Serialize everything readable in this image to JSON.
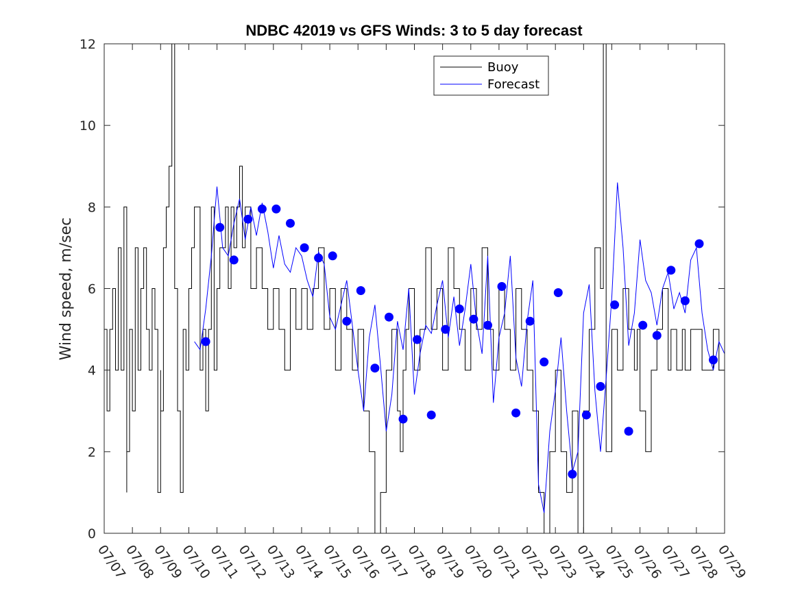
{
  "chart_data": {
    "type": "line",
    "title": "NDBC 42019 vs GFS Winds: 3 to 5 day forecast",
    "xlabel": "",
    "ylabel": "Wind speed, m/sec",
    "xlim": [
      0,
      22
    ],
    "ylim": [
      0,
      12
    ],
    "y_ticks": [
      "0",
      "2",
      "4",
      "6",
      "8",
      "10",
      "12"
    ],
    "x_ticks": [
      "07/07",
      "07/08",
      "07/09",
      "07/10",
      "07/11",
      "07/12",
      "07/13",
      "07/14",
      "07/15",
      "07/16",
      "07/17",
      "07/18",
      "07/19",
      "07/20",
      "07/21",
      "07/22",
      "07/23",
      "07/24",
      "07/25",
      "07/26",
      "07/27",
      "07/28",
      "07/29"
    ],
    "x_unit_note_days_from": "07/07",
    "grid": false,
    "legend_position": "top-center",
    "legend": [
      "Buoy",
      "Forecast"
    ],
    "colors": {
      "buoy": "#000000",
      "forecast": "#0000ff",
      "analysis_points": "#0000ff"
    },
    "buoy": {
      "name": "Buoy",
      "x": [
        0.0,
        0.1,
        0.2,
        0.3,
        0.4,
        0.5,
        0.6,
        0.7,
        0.8,
        0.8,
        0.9,
        1.0,
        1.1,
        1.2,
        1.3,
        1.4,
        1.5,
        1.6,
        1.7,
        1.8,
        1.9,
        2.0,
        2.0,
        2.1,
        2.2,
        2.3,
        2.4,
        2.5,
        2.6,
        2.7,
        2.8,
        2.9,
        3.0,
        3.1,
        3.2,
        3.4,
        3.5,
        3.6,
        3.7,
        3.8,
        3.9,
        4.0,
        4.1,
        4.2,
        4.3,
        4.4,
        4.5,
        4.6,
        4.7,
        4.8,
        4.9,
        5.0,
        5.2,
        5.4,
        5.6,
        5.8,
        6.0,
        6.2,
        6.4,
        6.6,
        6.8,
        7.0,
        7.2,
        7.4,
        7.6,
        7.8,
        8.0,
        8.2,
        8.4,
        8.6,
        8.8,
        9.0,
        9.2,
        9.4,
        9.6,
        9.8,
        10.0,
        10.2,
        10.4,
        10.5,
        10.6,
        10.7,
        10.8,
        11.0,
        11.2,
        11.4,
        11.6,
        11.8,
        12.0,
        12.2,
        12.4,
        12.6,
        12.8,
        13.0,
        13.2,
        13.4,
        13.6,
        13.8,
        14.0,
        14.2,
        14.4,
        14.6,
        14.8,
        15.0,
        15.2,
        15.4,
        15.6,
        15.8,
        16.0,
        16.2,
        16.4,
        16.6,
        16.8,
        17.0,
        17.2,
        17.4,
        17.6,
        17.7,
        17.8,
        18.0,
        18.2,
        18.4,
        18.6,
        18.8,
        18.9,
        19.0,
        19.2,
        19.4,
        19.6,
        19.8,
        20.0,
        20.1,
        20.3,
        20.5,
        20.6,
        20.8,
        21.0,
        21.2,
        21.4,
        21.6,
        21.8,
        22.0
      ],
      "values": [
        5,
        3,
        5,
        6,
        4,
        7,
        4,
        8,
        1,
        2,
        5,
        3,
        7,
        4,
        6,
        7,
        5,
        4,
        6,
        5,
        1,
        4,
        3,
        7,
        8,
        9,
        12,
        6,
        3,
        1,
        5,
        4,
        6,
        7,
        8,
        4,
        5,
        3,
        5,
        8,
        4,
        6,
        7,
        7,
        8,
        6,
        8,
        7,
        8,
        9,
        7,
        8,
        6,
        7,
        6,
        5,
        6,
        5,
        4,
        6,
        5,
        6,
        5,
        6,
        7,
        5,
        6,
        4,
        6,
        5,
        4,
        5,
        3,
        2,
        0,
        1,
        4,
        5,
        3,
        2,
        4,
        5,
        6,
        4,
        5,
        7,
        5,
        6,
        4,
        7,
        6,
        5,
        4,
        6,
        5,
        7,
        5,
        4,
        6,
        5,
        4,
        6,
        5,
        4,
        3,
        1,
        0,
        2,
        4,
        2,
        1,
        3,
        0,
        3,
        5,
        7,
        6,
        12,
        2,
        5,
        4,
        6,
        5,
        4,
        5,
        3,
        2,
        4,
        5,
        6,
        4,
        5,
        4,
        5,
        4,
        5,
        5,
        4,
        4,
        5,
        4,
        4
      ]
    },
    "forecast": {
      "name": "Forecast",
      "x": [
        3.2,
        3.4,
        3.6,
        3.8,
        4.0,
        4.2,
        4.4,
        4.6,
        4.8,
        5.0,
        5.2,
        5.4,
        5.6,
        5.8,
        6.0,
        6.2,
        6.4,
        6.6,
        6.8,
        7.0,
        7.2,
        7.4,
        7.6,
        7.8,
        8.0,
        8.2,
        8.4,
        8.6,
        8.8,
        9.0,
        9.2,
        9.4,
        9.6,
        9.8,
        10.0,
        10.2,
        10.4,
        10.6,
        10.8,
        11.0,
        11.2,
        11.4,
        11.6,
        11.8,
        12.0,
        12.2,
        12.4,
        12.6,
        12.8,
        13.0,
        13.2,
        13.4,
        13.6,
        13.8,
        14.0,
        14.2,
        14.4,
        14.6,
        14.8,
        15.0,
        15.2,
        15.4,
        15.6,
        15.8,
        16.0,
        16.2,
        16.4,
        16.6,
        16.8,
        17.0,
        17.2,
        17.4,
        17.6,
        17.8,
        18.0,
        18.2,
        18.4,
        18.6,
        18.8,
        19.0,
        19.2,
        19.4,
        19.6,
        19.8,
        20.0,
        20.2,
        20.4,
        20.6,
        20.8,
        21.0,
        21.2,
        21.4,
        21.6,
        21.8,
        22.0
      ],
      "values": [
        4.7,
        4.5,
        5.5,
        6.8,
        8.5,
        7.0,
        6.8,
        7.6,
        8.2,
        7.2,
        8.0,
        7.3,
        8.1,
        7.4,
        6.5,
        7.3,
        6.6,
        6.4,
        7.0,
        6.8,
        6.2,
        5.8,
        6.9,
        6.6,
        5.3,
        5.0,
        5.6,
        6.2,
        5.1,
        4.0,
        3.0,
        4.8,
        5.6,
        4.1,
        2.5,
        3.4,
        5.2,
        4.5,
        6.0,
        3.4,
        4.4,
        5.1,
        4.9,
        5.6,
        6.2,
        4.8,
        5.8,
        4.6,
        5.5,
        6.6,
        5.2,
        4.4,
        6.8,
        3.2,
        4.8,
        5.4,
        6.8,
        4.3,
        3.6,
        5.2,
        6.2,
        1.2,
        0.5,
        2.5,
        3.5,
        4.8,
        3.0,
        1.5,
        2.0,
        5.4,
        6.1,
        3.5,
        2.0,
        3.8,
        5.8,
        8.6,
        7.0,
        4.6,
        5.4,
        7.2,
        6.2,
        5.9,
        5.1,
        6.0,
        6.4,
        5.5,
        5.9,
        5.4,
        6.7,
        7.0,
        5.4,
        4.5,
        4.0,
        4.7,
        4.4
      ]
    },
    "forecast_markers": {
      "x": [
        3.6,
        4.1,
        4.6,
        5.1,
        5.6,
        6.1,
        6.6,
        7.1,
        7.6,
        8.1,
        8.6,
        9.1,
        9.6,
        10.1,
        10.6,
        11.1,
        11.6,
        12.1,
        12.6,
        13.1,
        13.6,
        14.1,
        14.6,
        15.1,
        15.6,
        16.1,
        16.6,
        17.1,
        17.6,
        18.1,
        18.6,
        19.1,
        19.6,
        20.1,
        20.6,
        21.1,
        21.6
      ],
      "values": [
        4.7,
        7.5,
        6.7,
        7.7,
        7.95,
        7.95,
        7.6,
        7.0,
        6.75,
        6.8,
        5.2,
        5.95,
        4.05,
        5.3,
        2.8,
        4.75,
        2.9,
        5.0,
        5.5,
        5.25,
        5.1,
        6.05,
        2.95,
        5.2,
        4.2,
        5.9,
        1.45,
        2.9,
        3.6,
        5.6,
        2.5,
        5.1,
        4.85,
        6.45,
        5.7,
        7.1,
        4.25
      ]
    }
  }
}
